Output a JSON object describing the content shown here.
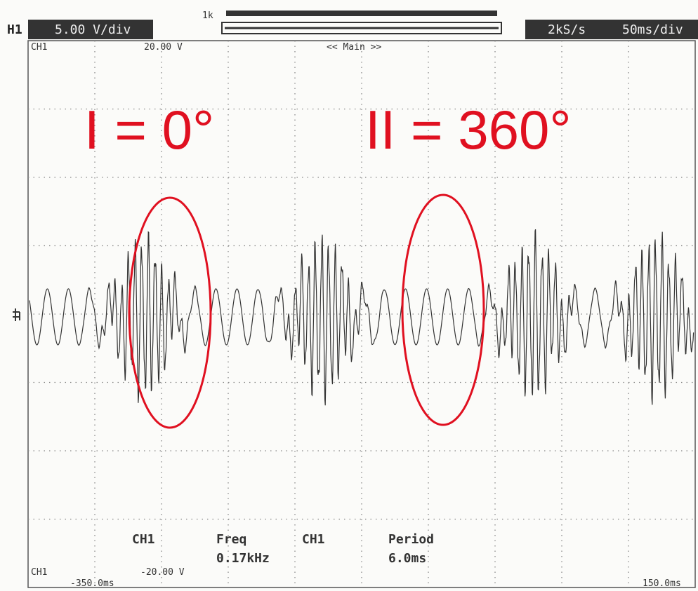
{
  "header": {
    "channel": "H1",
    "volts_per_div": "5.00 V/div",
    "memory": "1k",
    "sample_rate": "2kS/s",
    "time_per_div": "50ms/div"
  },
  "screen": {
    "channel_top": "CH1",
    "top_level": "20.00 V",
    "mode": "<< Main >>",
    "channel_bottom": "CH1",
    "bottom_level": "-20.00 V",
    "time_start": "-350.0ms",
    "time_end": "150.0ms"
  },
  "annotations": [
    "I = 0°",
    "II = 360°"
  ],
  "measurements": [
    {
      "channel": "CH1",
      "label": "Freq",
      "value": "0.17kHz"
    },
    {
      "channel": "CH1",
      "label": "Period",
      "value": "6.0ms"
    }
  ]
}
